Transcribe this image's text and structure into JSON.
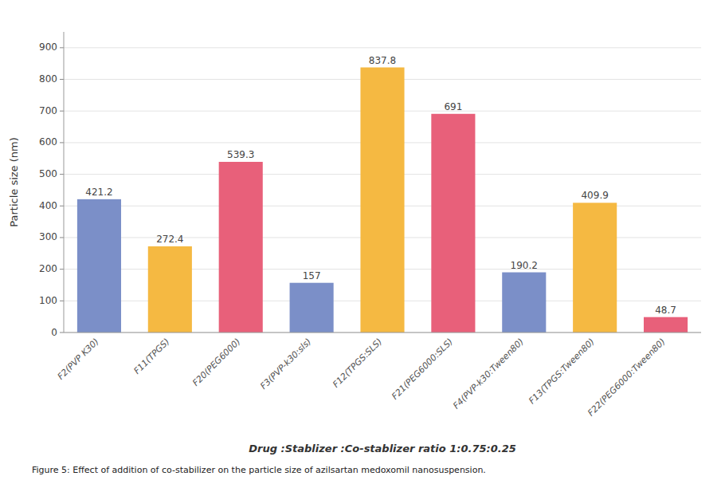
{
  "chart_data": {
    "type": "bar",
    "categories": [
      "F2(PVP K30)",
      "F11(TPGS)",
      "F20(PEG6000)",
      "F3(PVP-k30:sls)",
      "F12(TPGS:SLS)",
      "F21(PEG6000:SLS)",
      "F4(PVP-k30:Tween80)",
      "F13(TPGS:Tween80)",
      "F22(PEG6000:Tween80)"
    ],
    "values": [
      421.2,
      272.4,
      539.3,
      157,
      837.8,
      691,
      190.2,
      409.9,
      48.7
    ],
    "colors": [
      "#7b8fc8",
      "#f5b942",
      "#e8607a",
      "#7b8fc8",
      "#f5b942",
      "#e8607a",
      "#7b8fc8",
      "#f5b942",
      "#e8607a"
    ],
    "x_label": "Drug :Stablizer :Co-stablizer ratio 1:0.75:0.25",
    "y_label": "Particle size (nm)",
    "annotations": [
      "Figure 5: Effect of addition of co-stabilizer on the particle size of azilsartan medoxomil nanosuspension."
    ],
    "ylim": [
      0,
      950
    ],
    "yticks": [
      0,
      100,
      200,
      300,
      400,
      500,
      600,
      700,
      800,
      900
    ],
    "grid": true,
    "data_labels": true
  }
}
